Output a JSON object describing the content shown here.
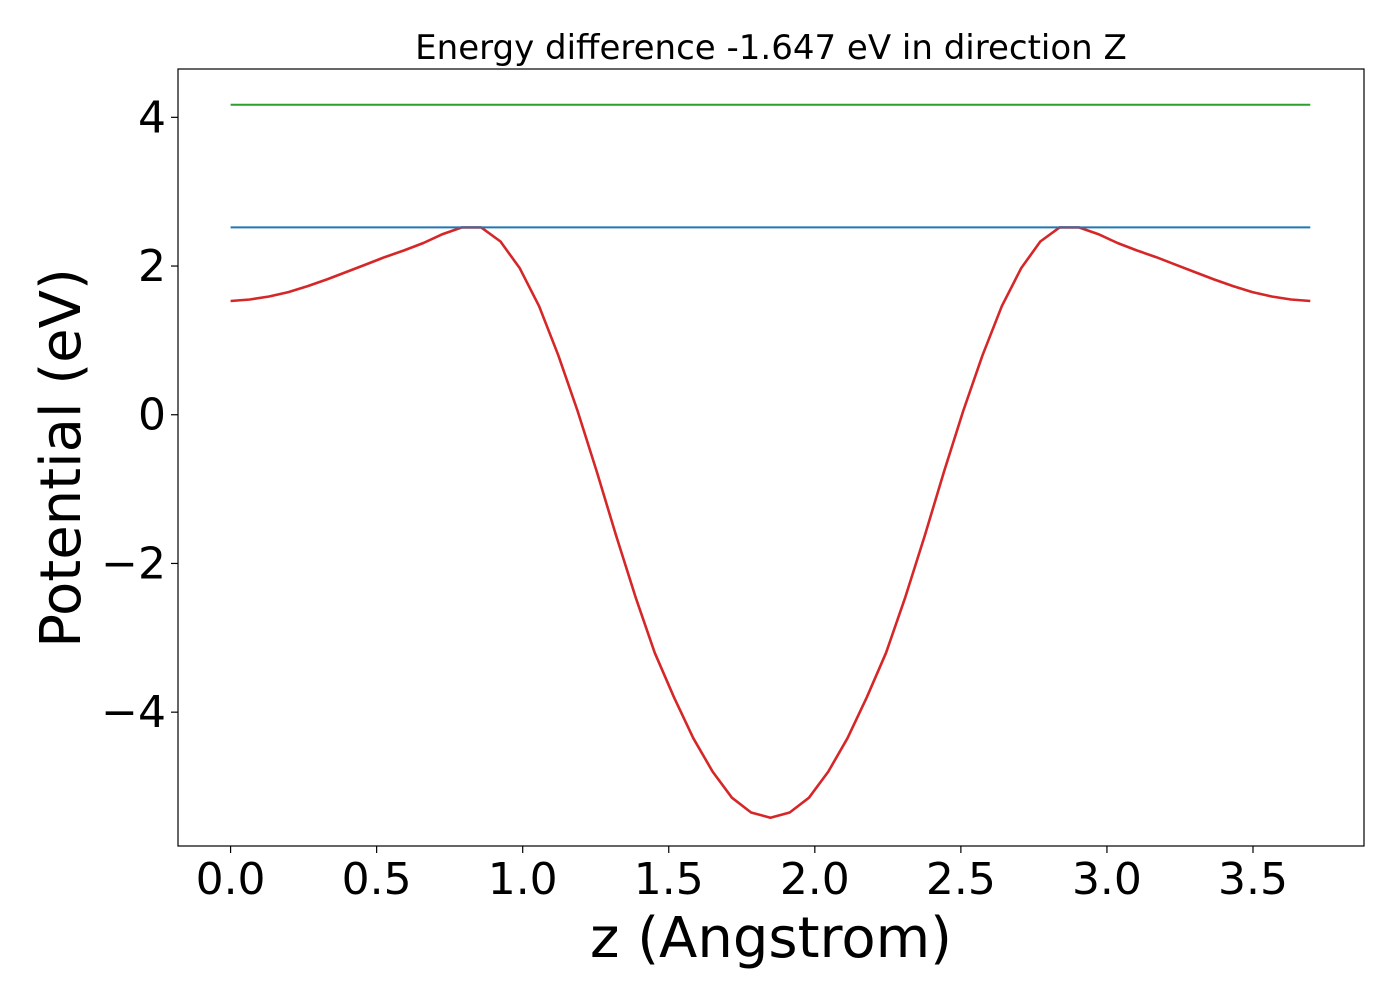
{
  "chart_data": {
    "type": "line",
    "title": "Energy difference -1.647 eV in direction Z",
    "xlabel": "z (Angstrom)",
    "ylabel": "Potential (eV)",
    "xlim": [
      -0.18,
      3.88
    ],
    "ylim": [
      -5.8,
      4.65
    ],
    "xticks": [
      0.0,
      0.5,
      1.0,
      1.5,
      2.0,
      2.5,
      3.0,
      3.5
    ],
    "xtick_labels": [
      "0.0",
      "0.5",
      "1.0",
      "1.5",
      "2.0",
      "2.5",
      "3.0",
      "3.5"
    ],
    "yticks": [
      -4,
      -2,
      0,
      2,
      4
    ],
    "ytick_labels": [
      "−4",
      "−2",
      "0",
      "2",
      "4"
    ],
    "grid": false,
    "series": [
      {
        "color": "#d62728",
        "x": [
          0.0,
          0.066,
          0.132,
          0.198,
          0.264,
          0.33,
          0.396,
          0.462,
          0.528,
          0.594,
          0.66,
          0.726,
          0.792,
          0.858,
          0.924,
          0.99,
          1.056,
          1.122,
          1.188,
          1.254,
          1.32,
          1.386,
          1.452,
          1.518,
          1.584,
          1.65,
          1.716,
          1.782,
          1.848,
          1.914,
          1.98,
          2.046,
          2.112,
          2.178,
          2.244,
          2.31,
          2.376,
          2.442,
          2.508,
          2.574,
          2.64,
          2.706,
          2.772,
          2.838,
          2.904,
          2.97,
          3.036,
          3.102,
          3.168,
          3.234,
          3.3,
          3.366,
          3.432,
          3.498,
          3.564,
          3.63,
          3.696
        ],
        "y": [
          1.53,
          1.55,
          1.59,
          1.65,
          1.73,
          1.82,
          1.92,
          2.02,
          2.12,
          2.21,
          2.31,
          2.43,
          2.52,
          2.52,
          2.33,
          1.97,
          1.46,
          0.8,
          0.05,
          -0.77,
          -1.63,
          -2.45,
          -3.2,
          -3.8,
          -4.35,
          -4.8,
          -5.15,
          -5.35,
          -5.42,
          -5.35,
          -5.15,
          -4.8,
          -4.35,
          -3.8,
          -3.2,
          -2.45,
          -1.63,
          -0.77,
          0.05,
          0.8,
          1.46,
          1.97,
          2.33,
          2.52,
          2.52,
          2.43,
          2.31,
          2.21,
          2.12,
          2.02,
          1.92,
          1.82,
          1.73,
          1.65,
          1.59,
          1.55,
          1.53
        ]
      },
      {
        "color": "#1f77b4",
        "x": [
          0.0,
          3.696
        ],
        "y": [
          2.52,
          2.52
        ]
      },
      {
        "color": "#2ca02c",
        "x": [
          0.0,
          3.696
        ],
        "y": [
          4.17,
          4.17
        ]
      }
    ]
  }
}
